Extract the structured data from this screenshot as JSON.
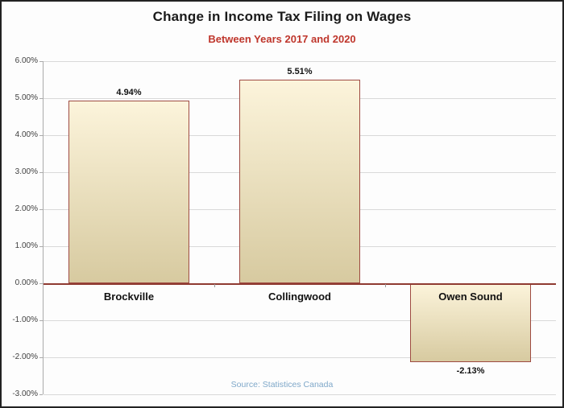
{
  "chart_data": {
    "type": "bar",
    "title": "Change in Income Tax Filing on Wages",
    "subtitle": "Between Years 2017 and 2020",
    "categories": [
      "Brockville",
      "Collingwood",
      "Owen Sound"
    ],
    "values": [
      4.94,
      5.51,
      -2.13
    ],
    "value_labels": [
      "4.94%",
      "5.51%",
      "-2.13%"
    ],
    "y_tick_labels": [
      "6.00%",
      "5.00%",
      "4.00%",
      "3.00%",
      "2.00%",
      "1.00%",
      "0.00%",
      "-1.00%",
      "-2.00%",
      "-3.00%"
    ],
    "y_tick_values": [
      6,
      5,
      4,
      3,
      2,
      1,
      0,
      -1,
      -2,
      -3
    ],
    "ylim": [
      -3,
      6
    ],
    "grid": true,
    "legend": "none",
    "source_note": "Source: Statistices Canada",
    "colors": {
      "title": "#1a1a1a",
      "subtitle": "#bf362c",
      "bar_fill_top": "#fcf4db",
      "bar_fill_bottom": "#d7caa0",
      "bar_border": "#9e4b42",
      "zero_line": "#8f3a31",
      "gridline": "#d9d9d9",
      "source": "#7fa8c9"
    }
  }
}
